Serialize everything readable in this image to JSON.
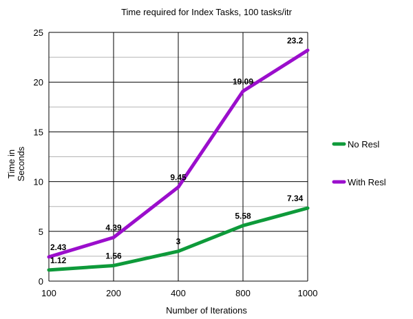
{
  "chart_data": {
    "type": "line",
    "title": "Time required for Index Tasks, 100 tasks/itr",
    "xlabel": "Number of Iterations",
    "ylabel": [
      "Time in",
      "Seconds"
    ],
    "categories": [
      "100",
      "200",
      "400",
      "800",
      "1000"
    ],
    "ylim": [
      0,
      25
    ],
    "yticks": [
      "0",
      "5",
      "10",
      "15",
      "20",
      "25"
    ],
    "ytick_values": [
      0,
      5,
      10,
      15,
      20,
      25
    ],
    "grid": true,
    "legend_position": "right",
    "series": [
      {
        "name": "No Resl",
        "color": "#0e9a3a",
        "values": [
          1.12,
          1.56,
          3,
          5.58,
          7.34
        ],
        "labels": [
          "1.12",
          "1.56",
          "3",
          "5.58",
          "7.34"
        ]
      },
      {
        "name": "With Resl",
        "color": "#9b0ecc",
        "values": [
          2.43,
          4.39,
          9.45,
          19.09,
          23.2
        ],
        "labels": [
          "2.43",
          "4.39",
          "9.45",
          "19.09",
          "23.2"
        ]
      }
    ]
  }
}
